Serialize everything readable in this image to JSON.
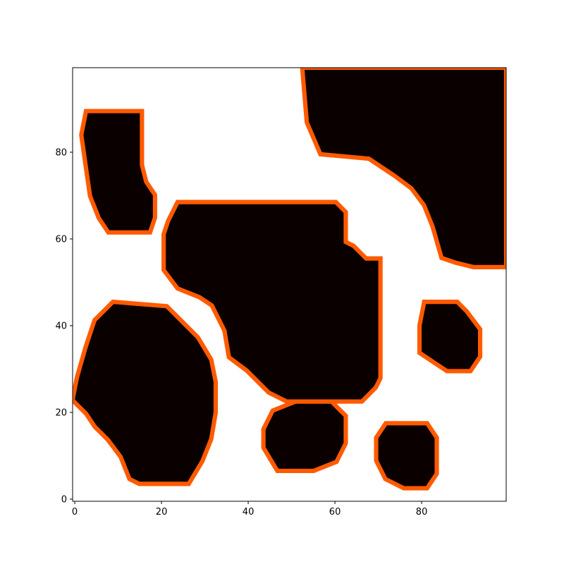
{
  "chart_data": {
    "type": "heatmap",
    "title": "",
    "xlabel": "",
    "ylabel": "",
    "grid": false,
    "legend": "none",
    "xlim": [
      -0.5,
      99.5
    ],
    "ylim": [
      99.5,
      -0.5
    ],
    "xticks": [
      0,
      20,
      40,
      60,
      80
    ],
    "yticks": [
      0,
      20,
      40,
      60,
      80
    ],
    "xtick_labels": [
      "0",
      "20",
      "40",
      "60",
      "80"
    ],
    "ytick_labels": [
      "0",
      "20",
      "40",
      "60",
      "80"
    ],
    "grid_size": [
      100,
      100
    ],
    "colors": {
      "background": "#ffffff",
      "region": "#0b0000",
      "boundary": "#ff5a00",
      "axes": "#000000"
    },
    "regions": [
      {
        "outline": [
          [
            3,
            20
          ],
          [
            5,
            17
          ],
          [
            8,
            14
          ],
          [
            11,
            10
          ],
          [
            13,
            5
          ],
          [
            15,
            4
          ],
          [
            26,
            4
          ],
          [
            29,
            9
          ],
          [
            31,
            14
          ],
          [
            32,
            20
          ],
          [
            32,
            27
          ],
          [
            31,
            32
          ],
          [
            28,
            37
          ],
          [
            24,
            41
          ],
          [
            21,
            44
          ],
          [
            9,
            45
          ],
          [
            5,
            41
          ],
          [
            3,
            35
          ],
          [
            1,
            28
          ],
          [
            0,
            23
          ]
        ]
      },
      {
        "outline": [
          [
            47,
            7
          ],
          [
            55,
            7
          ],
          [
            60,
            9
          ],
          [
            62,
            13
          ],
          [
            62,
            19
          ],
          [
            59,
            22
          ],
          [
            51,
            22
          ],
          [
            46,
            20
          ],
          [
            44,
            16
          ],
          [
            44,
            12
          ]
        ]
      },
      {
        "outline": [
          [
            76,
            3
          ],
          [
            81,
            3
          ],
          [
            83,
            6
          ],
          [
            83,
            14
          ],
          [
            81,
            17
          ],
          [
            72,
            17
          ],
          [
            70,
            14
          ],
          [
            70,
            9
          ],
          [
            72,
            5
          ]
        ]
      },
      {
        "outline": [
          [
            49,
            23
          ],
          [
            66,
            23
          ],
          [
            69,
            26
          ],
          [
            70,
            28
          ],
          [
            70,
            55
          ],
          [
            67,
            55
          ],
          [
            64,
            58
          ],
          [
            62,
            59
          ],
          [
            62,
            66
          ],
          [
            60,
            68
          ],
          [
            24,
            68
          ],
          [
            22,
            64
          ],
          [
            21,
            61
          ],
          [
            21,
            53
          ],
          [
            24,
            49
          ],
          [
            29,
            47
          ],
          [
            32,
            45
          ],
          [
            35,
            39
          ],
          [
            36,
            33
          ],
          [
            40,
            30
          ],
          [
            45,
            25
          ]
        ]
      },
      {
        "outline": [
          [
            86,
            30
          ],
          [
            91,
            30
          ],
          [
            93,
            33
          ],
          [
            93,
            39
          ],
          [
            90,
            43
          ],
          [
            88,
            45
          ],
          [
            81,
            45
          ],
          [
            80,
            40
          ],
          [
            80,
            34
          ],
          [
            83,
            32
          ]
        ]
      },
      {
        "outline": [
          [
            8,
            62
          ],
          [
            17,
            62
          ],
          [
            18,
            65
          ],
          [
            18,
            70
          ],
          [
            16,
            73
          ],
          [
            15,
            77
          ],
          [
            15,
            89
          ],
          [
            3,
            89
          ],
          [
            2,
            84
          ],
          [
            3,
            77
          ],
          [
            4,
            70
          ],
          [
            6,
            65
          ]
        ]
      },
      {
        "outline": [
          [
            92,
            54
          ],
          [
            99,
            54
          ],
          [
            99,
            99
          ],
          [
            53,
            99
          ],
          [
            54,
            87
          ],
          [
            57,
            80
          ],
          [
            68,
            79
          ],
          [
            74,
            75
          ],
          [
            78,
            72
          ],
          [
            81,
            68
          ],
          [
            83,
            63
          ],
          [
            85,
            56
          ],
          [
            88,
            55
          ]
        ]
      }
    ]
  }
}
